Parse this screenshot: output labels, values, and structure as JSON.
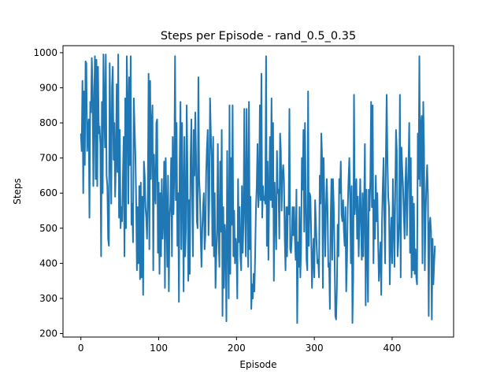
{
  "chart_data": {
    "type": "line",
    "title": "Steps per Episode - rand_0.5_0.35",
    "xlabel": "Episode",
    "ylabel": "Steps",
    "xlim": [
      -23,
      479
    ],
    "ylim": [
      190,
      1020
    ],
    "xticks": [
      0,
      100,
      200,
      300,
      400
    ],
    "yticks": [
      200,
      300,
      400,
      500,
      600,
      700,
      800,
      900,
      1000
    ],
    "grid": false,
    "color": "#1f77b4",
    "series": [
      {
        "values": [
          770,
          720,
          920,
          600,
          890,
          680,
          975,
          970,
          720,
          780,
          810,
          530,
          860,
          830,
          985,
          900,
          620,
          850,
          990,
          640,
          980,
          620,
          960,
          770,
          790,
          740,
          420,
          860,
          600,
          995,
          840,
          730,
          995,
          650,
          620,
          470,
          450,
          970,
          760,
          570,
          905,
          960,
          695,
          800,
          590,
          690,
          910,
          660,
          995,
          530,
          780,
          500,
          560,
          520,
          650,
          760,
          420,
          870,
          500,
          990,
          860,
          570,
          930,
          680,
          990,
          510,
          570,
          460,
          870,
          790,
          710,
          580,
          380,
          560,
          400,
          620,
          355,
          630,
          360,
          590,
          310,
          690,
          650,
          560,
          530,
          470,
          600,
          940,
          440,
          920,
          640,
          800,
          850,
          380,
          710,
          600,
          570,
          800,
          810,
          430,
          630,
          370,
          600,
          420,
          640,
          470,
          530,
          690,
          330,
          700,
          545,
          390,
          650,
          320,
          530,
          570,
          700,
          420,
          760,
          540,
          660,
          990,
          580,
          800,
          450,
          600,
          290,
          700,
          860,
          440,
          800,
          600,
          320,
          760,
          420,
          500,
          850,
          660,
          350,
          580,
          370,
          700,
          810,
          600,
          420,
          780,
          650,
          830,
          700,
          520,
          500,
          930,
          640,
          590,
          480,
          390,
          500,
          560,
          600,
          440,
          480,
          660,
          730,
          780,
          480,
          580,
          870,
          770,
          700,
          450,
          760,
          420,
          600,
          330,
          420,
          500,
          740,
          470,
          390,
          690,
          490,
          780,
          250,
          560,
          330,
          510,
          470,
          235,
          720,
          480,
          300,
          850,
          370,
          700,
          510,
          850,
          420,
          550,
          400,
          470,
          440,
          300,
          640,
          460,
          560,
          420,
          380,
          620,
          430,
          520,
          840,
          560,
          420,
          840,
          590,
          390,
          860,
          440,
          590,
          270,
          340,
          300,
          370,
          320,
          430,
          560,
          620,
          740,
          560,
          600,
          850,
          580,
          940,
          530,
          620,
          580,
          590,
          570,
          990,
          450,
          690,
          410,
          600,
          760,
          580,
          870,
          560,
          800,
          350,
          630,
          540,
          440,
          720,
          600,
          610,
          470,
          770,
          720,
          550,
          650,
          680,
          640,
          470,
          380,
          560,
          420,
          560,
          540,
          840,
          440,
          430,
          470,
          560,
          480,
          560,
          470,
          410,
          610,
          230,
          460,
          390,
          560,
          360,
          440,
          700,
          610,
          780,
          490,
          800,
          580,
          410,
          380,
          890,
          450,
          600,
          590,
          480,
          330,
          410,
          470,
          360,
          580,
          520,
          450,
          400,
          410,
          360,
          650,
          570,
          770,
          700,
          330,
          700,
          560,
          420,
          560,
          640,
          550,
          390,
          400,
          270,
          530,
          640,
          410,
          640,
          560,
          430,
          250,
          240,
          330,
          510,
          420,
          640,
          600,
          690,
          540,
          520,
          580,
          490,
          450,
          560,
          320,
          410,
          560,
          640,
          700,
          580,
          400,
          620,
          230,
          360,
          880,
          540,
          590,
          640,
          470,
          590,
          420,
          520,
          640,
          520,
          410,
          600,
          420,
          560,
          740,
          280,
          610,
          440,
          290,
          610,
          550,
          640,
          860,
          560,
          850,
          400,
          580,
          470,
          650,
          520,
          600,
          460,
          350,
          400,
          460,
          310,
          520,
          620,
          700,
          520,
          400,
          710,
          880,
          690,
          590,
          560,
          340,
          470,
          530,
          400,
          640,
          510,
          390,
          610,
          780,
          720,
          420,
          460,
          520,
          880,
          360,
          730,
          670,
          620,
          540,
          470,
          630,
          700,
          480,
          600,
          680,
          800,
          430,
          700,
          360,
          590,
          380,
          570,
          370,
          440,
          360,
          340,
          770,
          640,
          990,
          620,
          790,
          820,
          400,
          860,
          730,
          380,
          540,
          620,
          680,
          600,
          250,
          510,
          530,
          490,
          240,
          470,
          340,
          400,
          450
        ]
      }
    ]
  }
}
